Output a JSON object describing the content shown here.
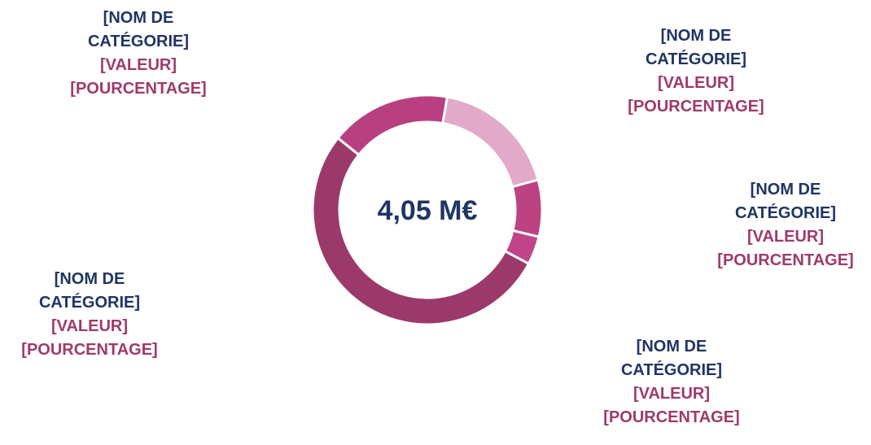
{
  "chart_data": {
    "type": "donut",
    "center_label": "4,05 M€",
    "categories": [
      "[NOM DE CATÉGORIE]",
      "[NOM DE CATÉGORIE]",
      "[NOM DE CATÉGORIE]",
      "[NOM DE CATÉGORIE]",
      "[NOM DE CATÉGORIE]"
    ],
    "values": [
      18,
      8,
      4,
      53,
      17
    ],
    "value_texts": [
      "[VALEUR]",
      "[VALEUR]",
      "[VALEUR]",
      "[VALEUR]",
      "[VALEUR]"
    ],
    "percent_texts": [
      "[POURCENTAGE]",
      "[POURCENTAGE]",
      "[POURCENTAGE]",
      "[POURCENTAGE]",
      "[POURCENTAGE]"
    ],
    "colors": [
      "#e2a9c8",
      "#bc4282",
      "#c0448a",
      "#9b3a6a",
      "#b94080"
    ]
  }
}
